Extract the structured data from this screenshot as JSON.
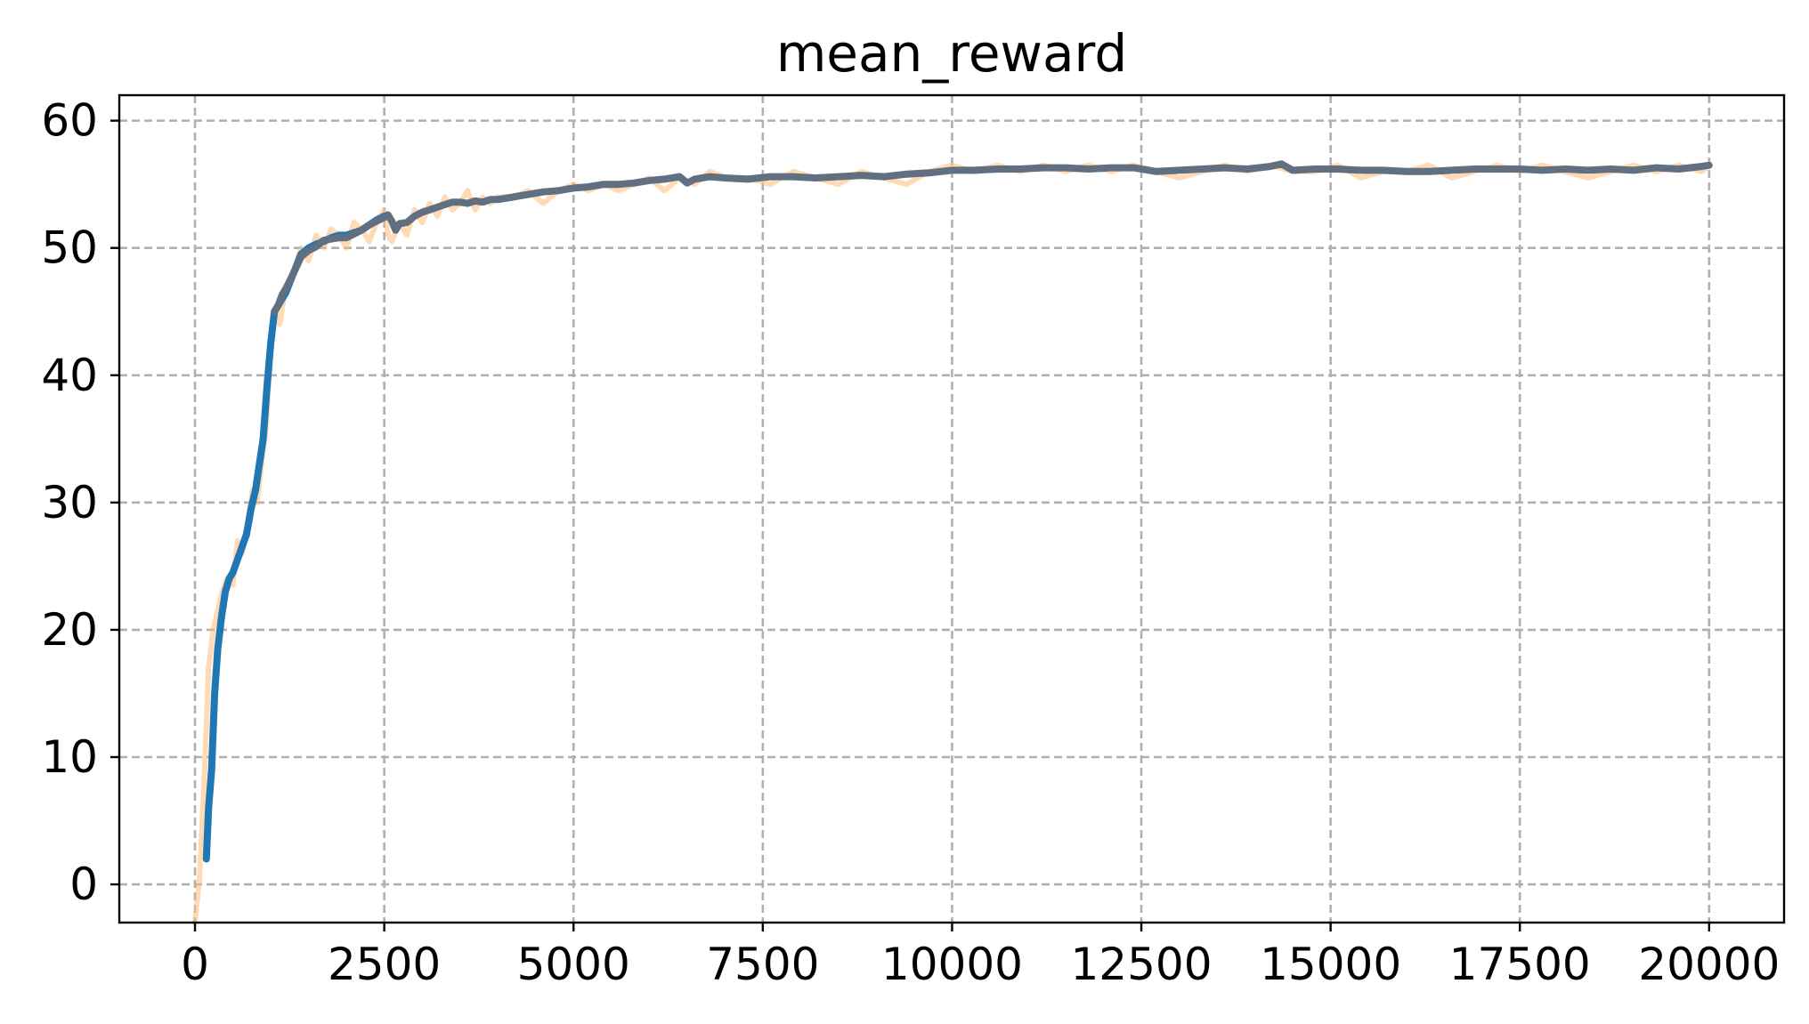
{
  "chart_data": {
    "type": "line",
    "title": "mean_reward",
    "xlabel": "",
    "ylabel": "",
    "xlim": [
      -1000,
      20990
    ],
    "ylim": [
      -3,
      62
    ],
    "x_ticks": [
      0,
      2500,
      5000,
      7500,
      10000,
      12500,
      15000,
      17500,
      20000
    ],
    "x_tick_labels": [
      "0",
      "2500",
      "5000",
      "7500",
      "10000",
      "12500",
      "15000",
      "17500",
      "20000"
    ],
    "y_ticks": [
      0,
      10,
      20,
      30,
      40,
      50,
      60
    ],
    "y_tick_labels": [
      "0",
      "10",
      "20",
      "30",
      "40",
      "50",
      "60"
    ],
    "grid": true,
    "legend": "none",
    "series": [
      {
        "role": "raw",
        "color": "#ffbb78",
        "opacity": 0.55,
        "x": [
          0,
          60,
          120,
          180,
          240,
          300,
          360,
          420,
          500,
          560,
          620,
          700,
          760,
          820,
          880,
          940,
          1000,
          1060,
          1120,
          1200,
          1300,
          1400,
          1500,
          1600,
          1700,
          1800,
          1900,
          2000,
          2100,
          2200,
          2300,
          2400,
          2500,
          2550,
          2600,
          2700,
          2800,
          2900,
          3000,
          3100,
          3200,
          3300,
          3400,
          3500,
          3600,
          3700,
          3800,
          3900,
          4000,
          4200,
          4400,
          4600,
          4800,
          5000,
          5200,
          5400,
          5600,
          5800,
          6000,
          6200,
          6400,
          6600,
          6800,
          7000,
          7300,
          7600,
          7900,
          8200,
          8500,
          8800,
          9100,
          9400,
          9700,
          10000,
          10300,
          10600,
          10900,
          11200,
          11500,
          11800,
          12100,
          12400,
          12700,
          13000,
          13300,
          13600,
          13900,
          14200,
          14500,
          14800,
          15100,
          15400,
          15700,
          16000,
          16300,
          16600,
          16900,
          17200,
          17500,
          17800,
          18100,
          18400,
          18700,
          19000,
          19300,
          19600,
          19900,
          20000
        ],
        "y": [
          -3,
          0.5,
          8,
          17,
          20,
          21.5,
          23,
          24,
          23.5,
          27,
          26,
          28.5,
          31,
          30,
          33,
          36,
          42,
          45,
          44,
          47,
          48,
          50,
          49,
          51,
          50,
          51.5,
          51,
          50,
          52,
          51.5,
          50.5,
          52,
          53,
          51,
          50.5,
          52,
          51,
          53,
          52,
          53.5,
          52.5,
          54,
          53,
          53.5,
          54.5,
          53,
          54,
          53.5,
          54,
          54,
          54.5,
          53.5,
          54.5,
          55,
          54.5,
          55,
          54.5,
          55,
          55.5,
          54.5,
          55.5,
          55,
          56,
          55.5,
          55.5,
          55,
          56,
          55.5,
          55,
          56,
          55.5,
          55,
          56,
          56.5,
          56,
          56.5,
          56,
          56.5,
          56,
          56.5,
          56,
          56.5,
          56,
          55.5,
          56,
          56.5,
          56,
          56.5,
          56,
          56,
          56.5,
          55.5,
          56,
          56,
          56.5,
          55.5,
          56,
          56.5,
          56,
          56.5,
          56,
          55.5,
          56,
          56.5,
          56,
          56.5,
          56,
          56.5
        ]
      },
      {
        "role": "smoothed",
        "color": "#1f77b4",
        "opacity": 1,
        "x": [
          150,
          180,
          220,
          260,
          300,
          350,
          400,
          450,
          500,
          560,
          620,
          680,
          740,
          800,
          850,
          900,
          950,
          1000,
          1050,
          1100,
          1150,
          1200,
          1300,
          1400,
          1500,
          1600,
          1700,
          1800,
          1900,
          2000,
          2100,
          2200,
          2300,
          2400,
          2500
        ],
        "y": [
          2,
          6,
          9,
          15,
          18.5,
          21,
          23,
          24,
          24.5,
          25.5,
          26.5,
          27.5,
          29.5,
          31,
          33,
          35,
          39,
          42.5,
          45,
          45.5,
          46,
          46.5,
          48,
          49.5,
          50,
          50.3,
          50.5,
          50.8,
          51,
          51,
          51.2,
          51.4,
          51.8,
          52.2,
          52.5
        ]
      },
      {
        "role": "smoothed-overlay",
        "color": "#607080",
        "opacity": 1,
        "x": [
          1050,
          1100,
          1150,
          1200,
          1300,
          1400,
          1500,
          1600,
          1700,
          1800,
          1900,
          2000,
          2100,
          2200,
          2300,
          2400,
          2500,
          2550,
          2600,
          2650,
          2700,
          2800,
          2900,
          3000,
          3100,
          3200,
          3300,
          3400,
          3500,
          3600,
          3700,
          3800,
          3900,
          4000,
          4200,
          4400,
          4600,
          4800,
          5000,
          5200,
          5400,
          5600,
          5800,
          6000,
          6200,
          6400,
          6500,
          6600,
          6700,
          6800,
          7000,
          7300,
          7600,
          7900,
          8200,
          8500,
          8800,
          9100,
          9400,
          9700,
          10000,
          10300,
          10600,
          10900,
          11200,
          11500,
          11800,
          12100,
          12400,
          12700,
          13000,
          13300,
          13600,
          13900,
          14200,
          14350,
          14500,
          14800,
          15100,
          15400,
          15700,
          16000,
          16300,
          16600,
          16900,
          17200,
          17500,
          17800,
          18100,
          18400,
          18700,
          19000,
          19300,
          19600,
          19900,
          20000
        ],
        "y": [
          45,
          45.5,
          46.3,
          46.8,
          48,
          49.3,
          49.8,
          50.1,
          50.6,
          50.7,
          50.8,
          50.8,
          51.1,
          51.4,
          51.8,
          52.1,
          52.4,
          52.6,
          52.1,
          51.4,
          51.9,
          52,
          52.5,
          52.8,
          53,
          53.2,
          53.4,
          53.6,
          53.6,
          53.5,
          53.7,
          53.6,
          53.8,
          53.8,
          54,
          54.2,
          54.4,
          54.5,
          54.7,
          54.8,
          55,
          55,
          55.1,
          55.3,
          55.4,
          55.6,
          55.1,
          55.4,
          55.5,
          55.6,
          55.5,
          55.4,
          55.6,
          55.6,
          55.5,
          55.6,
          55.7,
          55.6,
          55.8,
          55.9,
          56.1,
          56.1,
          56.2,
          56.2,
          56.3,
          56.3,
          56.2,
          56.3,
          56.3,
          56,
          56.1,
          56.2,
          56.3,
          56.2,
          56.4,
          56.6,
          56.1,
          56.2,
          56.2,
          56.1,
          56.1,
          56,
          56,
          56.1,
          56.2,
          56.2,
          56.2,
          56.1,
          56.2,
          56.1,
          56.2,
          56.1,
          56.3,
          56.2,
          56.4,
          56.5
        ]
      }
    ]
  }
}
